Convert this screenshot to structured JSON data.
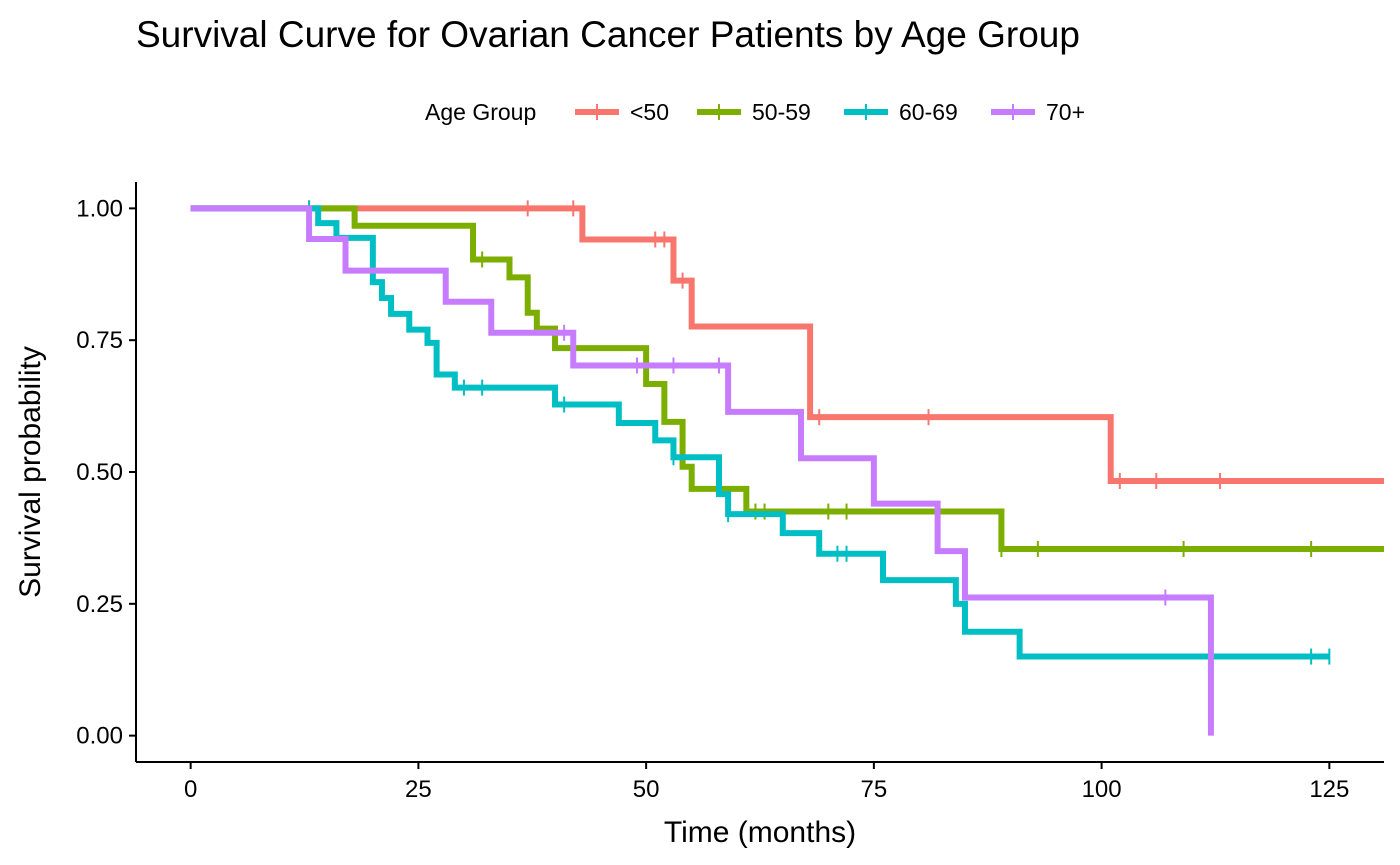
{
  "chart_data": {
    "type": "line",
    "subtype": "kaplan-meier step",
    "title": "Survival Curve for Ovarian Cancer Patients by Age Group",
    "xlabel": "Time (months)",
    "ylabel": "Survival probability",
    "xlim": [
      -6,
      131
    ],
    "ylim": [
      -0.05,
      1.05
    ],
    "x_ticks": [
      0,
      25,
      50,
      75,
      100,
      125
    ],
    "x_tick_labels": [
      "0",
      "25",
      "50",
      "75",
      "100",
      "125"
    ],
    "y_ticks": [
      0,
      0.25,
      0.5,
      0.75,
      1.0
    ],
    "y_tick_labels": [
      "0.00",
      "0.25",
      "0.50",
      "0.75",
      "1.00"
    ],
    "grid": false,
    "legend": {
      "title": "Age Group",
      "position": "top"
    },
    "series": [
      {
        "name": "<50",
        "color": "#F8766D",
        "steps": [
          [
            0,
            1.0
          ],
          [
            43,
            0.941
          ],
          [
            53,
            0.863
          ],
          [
            55,
            0.776
          ],
          [
            68,
            0.604
          ],
          [
            101,
            0.483
          ]
        ],
        "end": 131,
        "censored": [
          37,
          42,
          51,
          52,
          54,
          69,
          81,
          102,
          106,
          113
        ]
      },
      {
        "name": "50-59",
        "color": "#7CAE00",
        "steps": [
          [
            0,
            1.0
          ],
          [
            18,
            0.967
          ],
          [
            31,
            0.903
          ],
          [
            35,
            0.869
          ],
          [
            37,
            0.802
          ],
          [
            38,
            0.772
          ],
          [
            40,
            0.735
          ],
          [
            50,
            0.667
          ],
          [
            52,
            0.595
          ],
          [
            54,
            0.51
          ],
          [
            55,
            0.468
          ],
          [
            61,
            0.425
          ],
          [
            89,
            0.354
          ]
        ],
        "end": 131,
        "censored": [
          13,
          32,
          62,
          63,
          70,
          72,
          89,
          93,
          109,
          123
        ]
      },
      {
        "name": "60-69",
        "color": "#00BFC4",
        "steps": [
          [
            0,
            1.0
          ],
          [
            14,
            0.972
          ],
          [
            16,
            0.944
          ],
          [
            20,
            0.86
          ],
          [
            21,
            0.83
          ],
          [
            22,
            0.8
          ],
          [
            24,
            0.77
          ],
          [
            26,
            0.745
          ],
          [
            27,
            0.685
          ],
          [
            29,
            0.66
          ],
          [
            40,
            0.628
          ],
          [
            47,
            0.593
          ],
          [
            51,
            0.56
          ],
          [
            53,
            0.528
          ],
          [
            58,
            0.458
          ],
          [
            59,
            0.42
          ],
          [
            65,
            0.384
          ],
          [
            69,
            0.345
          ],
          [
            76,
            0.295
          ],
          [
            84,
            0.25
          ],
          [
            85,
            0.197
          ],
          [
            91,
            0.15
          ]
        ],
        "end": 125,
        "censored": [
          13,
          30,
          32,
          41,
          53,
          59,
          71,
          72,
          123,
          125
        ]
      },
      {
        "name": "70+",
        "color": "#C77CFF",
        "steps": [
          [
            0,
            1.0
          ],
          [
            13,
            0.942
          ],
          [
            17,
            0.882
          ],
          [
            28,
            0.823
          ],
          [
            33,
            0.764
          ],
          [
            42,
            0.702
          ],
          [
            59,
            0.614
          ],
          [
            67,
            0.526
          ],
          [
            75,
            0.44
          ],
          [
            82,
            0.35
          ],
          [
            85,
            0.262
          ],
          [
            112,
            0.0
          ]
        ],
        "end": 112,
        "censored": [
          41,
          49,
          53,
          58,
          107
        ]
      }
    ]
  }
}
